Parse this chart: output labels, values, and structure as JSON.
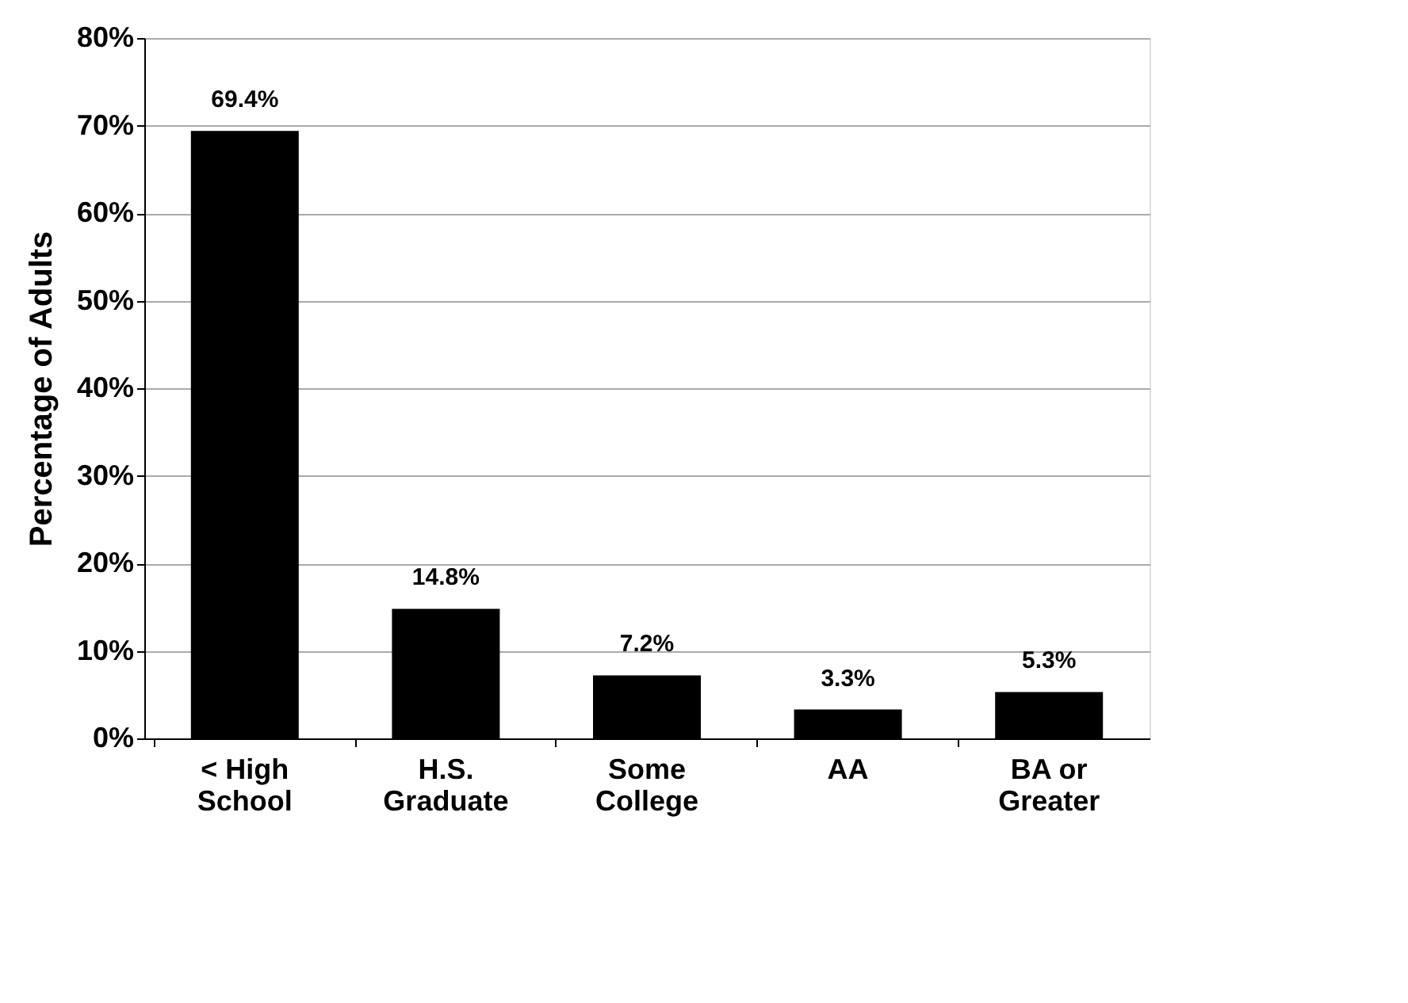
{
  "chart_data": {
    "type": "bar",
    "ylabel": "Percentage of Adults",
    "categories": [
      "< High School",
      "H.S. Graduate",
      "Some College",
      "AA",
      "BA or Greater"
    ],
    "values": [
      69.4,
      14.8,
      7.2,
      3.3,
      5.3
    ],
    "value_labels": [
      "69.4%",
      "14.8%",
      "7.2%",
      "3.3%",
      "5.3%"
    ],
    "color": "#000000",
    "ylim": [
      0,
      80
    ],
    "yticks": [
      {
        "value": 0,
        "label": "0%"
      },
      {
        "value": 10,
        "label": "10%"
      },
      {
        "value": 20,
        "label": "20%"
      },
      {
        "value": 30,
        "label": "30%"
      },
      {
        "value": 40,
        "label": "40%"
      },
      {
        "value": 50,
        "label": "50%"
      },
      {
        "value": 60,
        "label": "60%"
      },
      {
        "value": 70,
        "label": "70%"
      },
      {
        "value": 80,
        "label": "80%"
      }
    ],
    "grid": "y"
  }
}
